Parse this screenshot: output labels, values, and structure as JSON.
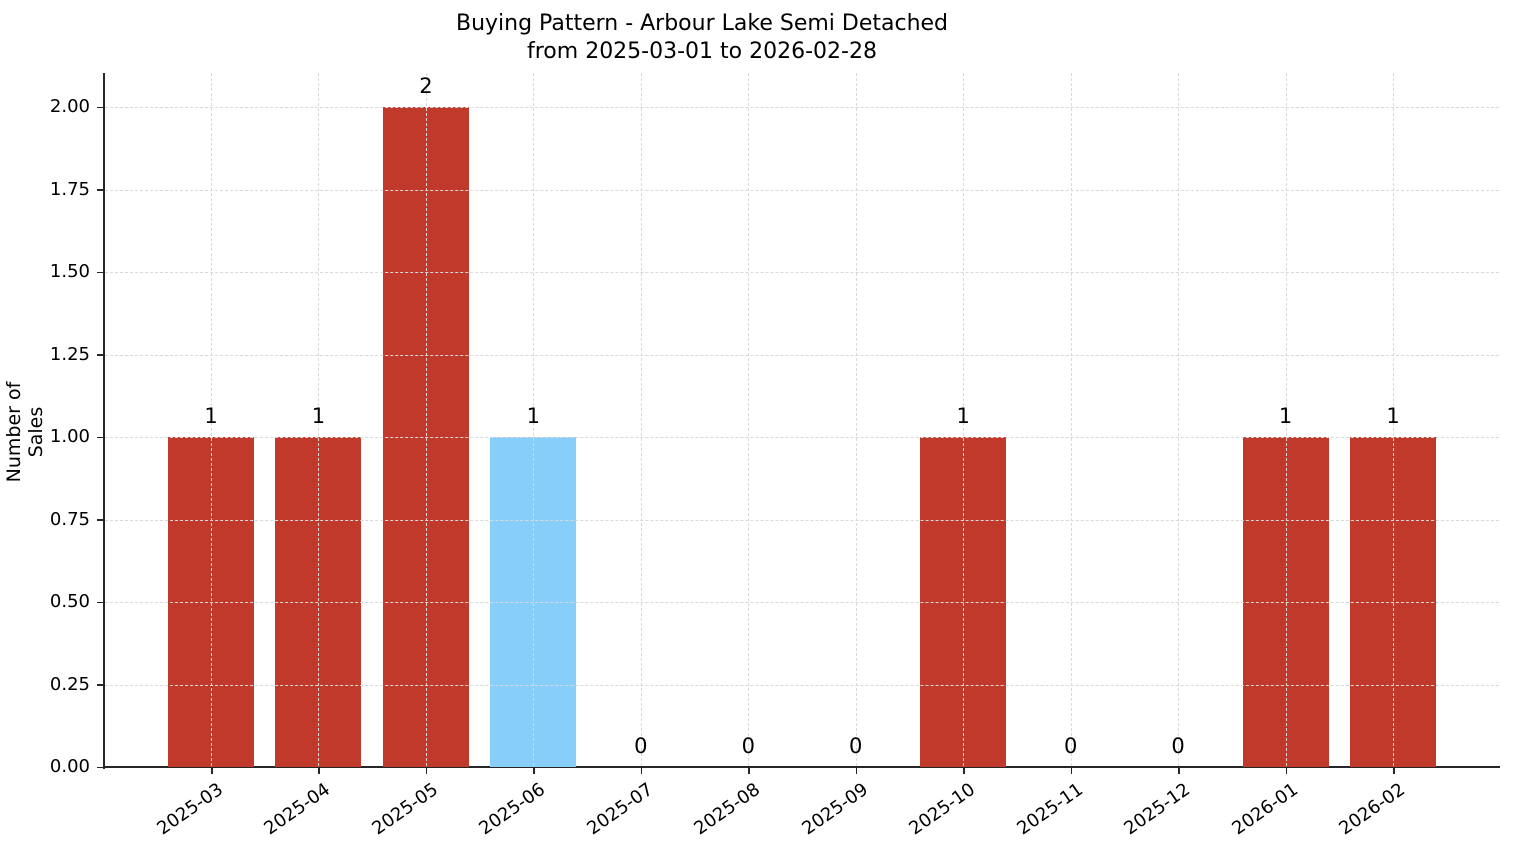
{
  "chart_data": {
    "type": "bar",
    "title": "Buying Pattern - Arbour Lake Semi Detached",
    "subtitle": "from 2025-03-01 to 2026-02-28",
    "xlabel": "",
    "ylabel": "Number of Sales",
    "categories": [
      "2025-03",
      "2025-04",
      "2025-05",
      "2025-06",
      "2025-07",
      "2025-08",
      "2025-09",
      "2025-10",
      "2025-11",
      "2025-12",
      "2026-01",
      "2026-02"
    ],
    "values": [
      1,
      1,
      2,
      1,
      0,
      0,
      0,
      1,
      0,
      0,
      1,
      1
    ],
    "bar_colors": [
      "#c0392b",
      "#c0392b",
      "#c0392b",
      "#87cefa",
      "#c0392b",
      "#c0392b",
      "#c0392b",
      "#c0392b",
      "#c0392b",
      "#c0392b",
      "#c0392b",
      "#c0392b"
    ],
    "data_labels": [
      "1",
      "1",
      "2",
      "1",
      "0",
      "0",
      "0",
      "1",
      "0",
      "0",
      "1",
      "1"
    ],
    "ylim": [
      0,
      2.1
    ],
    "yticks": [
      "0.00",
      "0.25",
      "0.50",
      "0.75",
      "1.00",
      "1.25",
      "1.50",
      "1.75",
      "2.00"
    ],
    "grid": true,
    "grid_style": "dashed",
    "legend": null,
    "highlight_color": "#87cefa",
    "default_color": "#c0392b"
  }
}
